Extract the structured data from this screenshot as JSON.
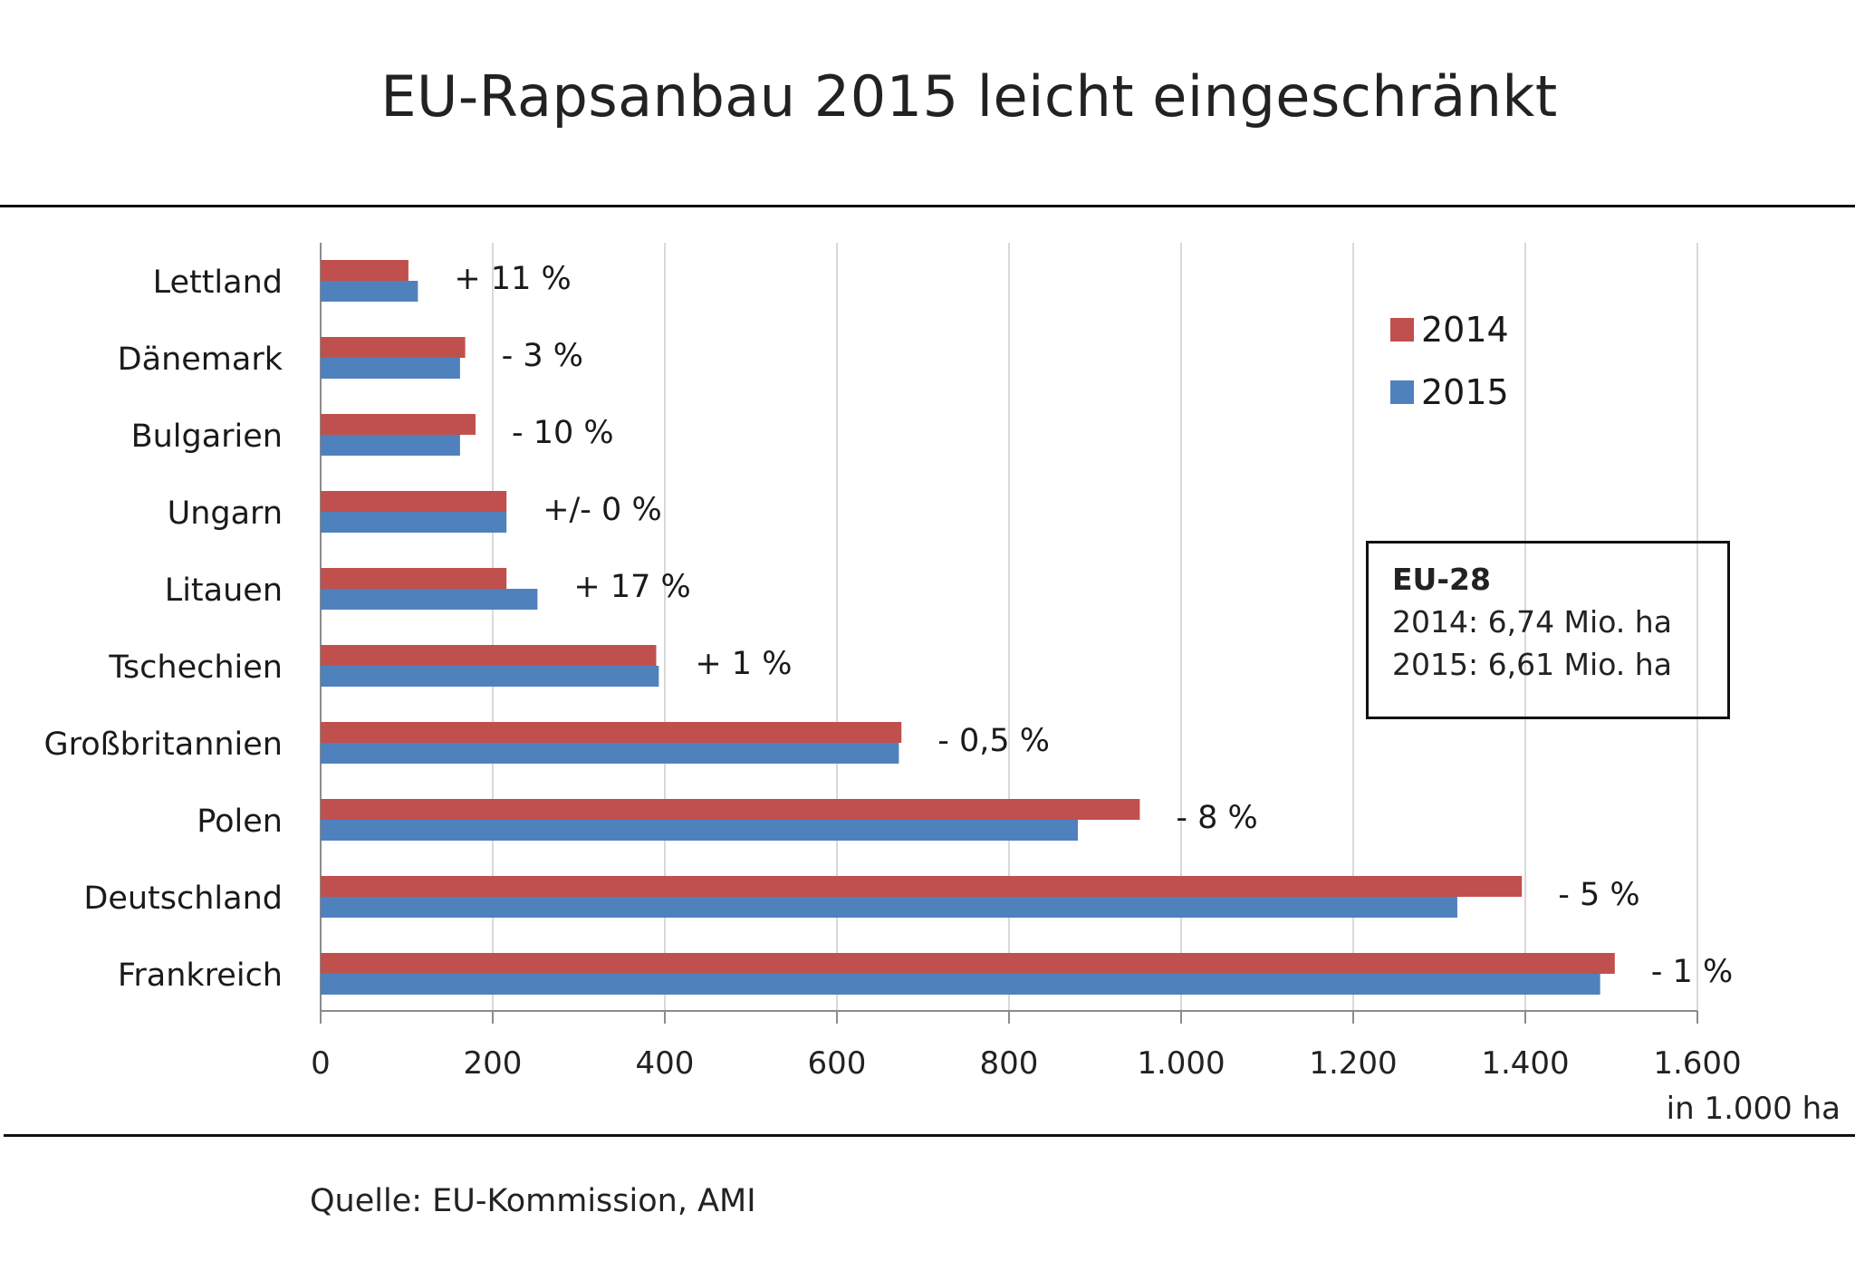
{
  "title": "EU-Rapsanbau 2015 leicht eingeschränkt",
  "source": "Quelle: EU-Kommission, AMI",
  "infobox": {
    "heading": "EU-28",
    "line1": "2014: 6,74 Mio.  ha",
    "line2": "2015: 6,61 Mio.  ha"
  },
  "colors": {
    "series_2014": "#c0504d",
    "series_2015": "#4f81bd",
    "grid": "#d9d9d9",
    "axis": "#8c8c8c"
  },
  "chart_data": {
    "type": "bar",
    "orientation": "horizontal",
    "title": "EU-Rapsanbau 2015 leicht eingeschränkt",
    "xlabel": "in 1.000  ha",
    "ylabel": "",
    "xlim": [
      0,
      1600
    ],
    "ticks": [
      0,
      200,
      400,
      600,
      800,
      1000,
      1200,
      1400,
      1600
    ],
    "tick_labels": [
      "0",
      "200",
      "400",
      "600",
      "800",
      "1.000",
      "1.200",
      "1.400",
      "1.600"
    ],
    "grid": true,
    "legend_position": "top-right",
    "categories": [
      "Lettland",
      "Dänemark",
      "Bulgarien",
      "Ungarn",
      "Litauen",
      "Tschechien",
      "Großbritannien",
      "Polen",
      "Deutschland",
      "Frankreich"
    ],
    "series": [
      {
        "name": "2014",
        "color": "#c0504d",
        "values": [
          102,
          168,
          180,
          216,
          216,
          390,
          675,
          952,
          1396,
          1504
        ]
      },
      {
        "name": "2015",
        "color": "#4f81bd",
        "values": [
          113,
          162,
          162,
          216,
          252,
          393,
          672,
          880,
          1321,
          1487
        ]
      }
    ],
    "annotations": [
      "+ 11  %",
      "- 3 %",
      "- 10 %",
      "+/- 0 %",
      "+ 17  %",
      "+ 1  %",
      "- 0,5  %",
      "- 8 %",
      "-  5 %",
      "- 1 %"
    ]
  }
}
